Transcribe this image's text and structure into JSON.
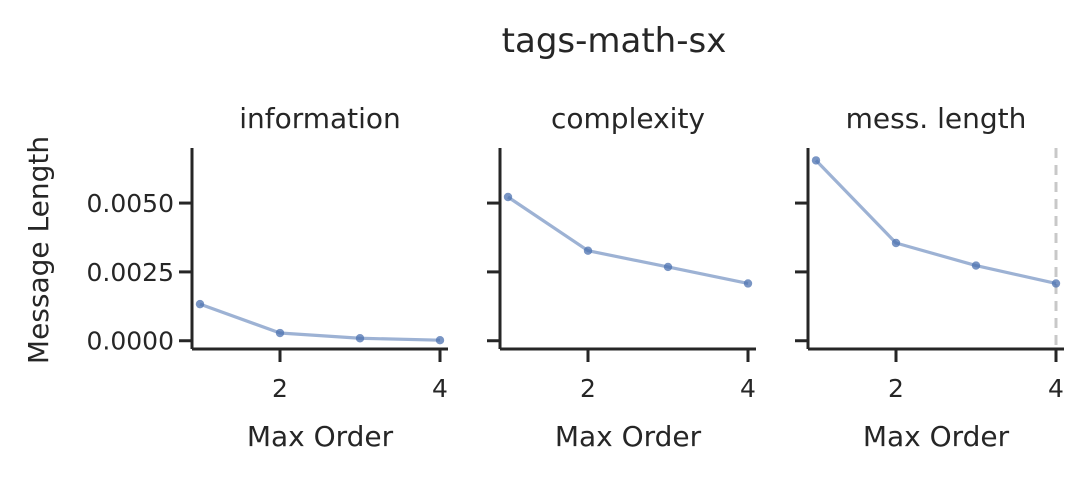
{
  "chart_data": [
    {
      "type": "line",
      "suptitle": "tags-math-sx",
      "title": "information",
      "xlabel": "Max Order",
      "ylabel": "Message Length",
      "x": [
        1,
        2,
        3,
        4
      ],
      "series": [
        {
          "values": [
            0.00133,
            0.00028,
            9e-05,
            2e-05
          ]
        }
      ],
      "xticks": [
        "2",
        "4"
      ],
      "yticks": [
        "0.0000",
        "0.0025",
        "0.0050"
      ],
      "xlim": [
        0.9,
        4.1
      ],
      "ylim": [
        -0.0003,
        0.007
      ],
      "vline": null,
      "grid": false,
      "color": "#4c72b0"
    },
    {
      "type": "line",
      "title": "complexity",
      "xlabel": "Max Order",
      "ylabel": "",
      "x": [
        1,
        2,
        3,
        4
      ],
      "series": [
        {
          "values": [
            0.00522,
            0.00327,
            0.00268,
            0.00208
          ]
        }
      ],
      "xticks": [
        "2",
        "4"
      ],
      "yticks": [
        "",
        "",
        ""
      ],
      "xlim": [
        0.9,
        4.1
      ],
      "ylim": [
        -0.0003,
        0.007
      ],
      "vline": null,
      "grid": false,
      "color": "#4c72b0"
    },
    {
      "type": "line",
      "title": "mess. length",
      "xlabel": "Max Order",
      "ylabel": "",
      "x": [
        1,
        2,
        3,
        4
      ],
      "series": [
        {
          "values": [
            0.00655,
            0.00355,
            0.00273,
            0.00208
          ]
        }
      ],
      "xticks": [
        "2",
        "4"
      ],
      "yticks": [
        "",
        "",
        ""
      ],
      "xlim": [
        0.9,
        4.1
      ],
      "ylim": [
        -0.0003,
        0.007
      ],
      "vline": 4,
      "vline_color": "#c8c8c8",
      "grid": false,
      "color": "#4c72b0"
    }
  ]
}
